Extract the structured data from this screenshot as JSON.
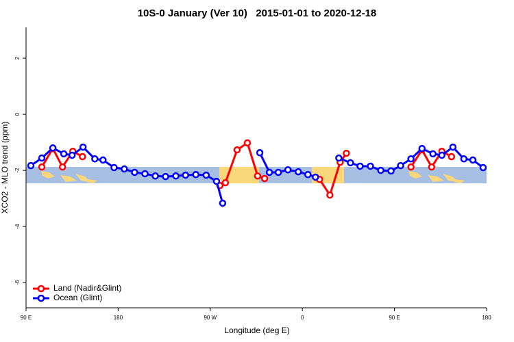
{
  "chart_data": {
    "type": "line",
    "title": "10S-0 January (Ver 10)   2015-01-01 to 2020-12-18",
    "x_label": "Longitude (deg E)",
    "y_label": "XCO2 - MLO trend (ppm)",
    "xlim": [
      90,
      540
    ],
    "ylim": [
      -6.9,
      3.1
    ],
    "xticks": [
      {
        "value": 90,
        "label": "90 E"
      },
      {
        "value": 180,
        "label": "180"
      },
      {
        "value": 270,
        "label": "90 W"
      },
      {
        "value": 360,
        "label": "0"
      },
      {
        "value": 450,
        "label": "90 E"
      },
      {
        "value": 540,
        "label": "180"
      }
    ],
    "yticks": [
      2,
      0,
      -2,
      -4,
      -6
    ],
    "legend": "bottom-left",
    "series": [
      {
        "name": "Land (Nadir&Glint)",
        "color": "#ff0000",
        "x": [
          105.4,
          116.2,
          125.6,
          135.7,
          145.1,
          null,
          279.4,
          284.8,
          296.2,
          306.3,
          316.3,
          323.1,
          null,
          376.8,
          386.9,
          396.9,
          403.0,
          null,
          466.1,
          476.9,
          486.3,
          496.3,
          505.7
        ],
        "values": [
          -1.88,
          -1.22,
          -1.88,
          -1.32,
          -1.51,
          null,
          -2.54,
          -2.44,
          -1.27,
          -1.02,
          -2.2,
          -2.29,
          null,
          -2.32,
          -2.88,
          -1.71,
          -1.39,
          null,
          -1.88,
          -1.27,
          -1.88,
          -1.32,
          -1.51
        ]
      },
      {
        "name": "Ocean (Glint)",
        "color": "#0000ff",
        "x": [
          94.7,
          105.4,
          116.2,
          126.9,
          135.0,
          145.7,
          157.2,
          165.2,
          176.0,
          186.0,
          196.1,
          206.2,
          216.3,
          226.3,
          236.4,
          245.8,
          255.9,
          266.0,
          276.1,
          282.1,
          null,
          318.4,
          327.8,
          336.5,
          345.9,
          356.0,
          365.4,
          372.8,
          null,
          395.6,
          407.0,
          416.4,
          426.5,
          436.6,
          446.6,
          456.0,
          466.1,
          476.9,
          487.6,
          496.3,
          507.1,
          517.8,
          526.6,
          536.6
        ],
        "values": [
          -1.83,
          -1.56,
          -1.2,
          -1.41,
          -1.46,
          -1.17,
          -1.59,
          -1.63,
          -1.9,
          -1.95,
          -2.07,
          -2.12,
          -2.2,
          -2.22,
          -2.2,
          -2.17,
          -2.15,
          -2.17,
          -2.39,
          -3.17,
          null,
          -1.37,
          -2.07,
          -2.07,
          -1.98,
          -2.05,
          -2.15,
          -2.24,
          null,
          -1.56,
          -1.73,
          -1.85,
          -1.85,
          -2.0,
          -2.02,
          -1.83,
          -1.59,
          -1.22,
          -1.41,
          -1.46,
          -1.17,
          -1.59,
          -1.63,
          -1.9
        ]
      }
    ]
  }
}
